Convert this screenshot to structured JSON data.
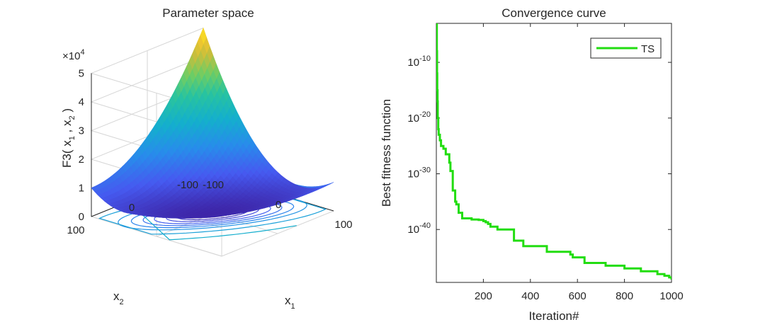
{
  "chart_data": [
    {
      "type": "surface",
      "title": "Parameter space",
      "xlabel": "x",
      "xlabel_sub": "1",
      "ylabel": "x",
      "ylabel_sub": "2",
      "zlabel_parts": [
        "F3( x",
        "1",
        " , x",
        "2",
        " )"
      ],
      "exponent_prefix": "×10",
      "exponent_power": "4",
      "xlim": [
        -100,
        100
      ],
      "ylim": [
        -100,
        100
      ],
      "zlim": [
        0,
        5
      ],
      "x_ticks": [
        "-100",
        "0",
        "100"
      ],
      "y_ticks": [
        "-100",
        "0",
        "100"
      ],
      "z_ticks": [
        "0",
        "1",
        "2",
        "3",
        "4",
        "5"
      ],
      "function": "(x1 + x2)^2 + x1^2",
      "colormap": "parula",
      "grid": true
    },
    {
      "type": "line",
      "title": "Convergence curve",
      "xlabel": "Iteration#",
      "ylabel": "Best fitness function",
      "y_scale": "log",
      "xlim": [
        0,
        1000
      ],
      "x_ticks": [
        "200",
        "400",
        "600",
        "800",
        "1000"
      ],
      "y_tick_base": "10",
      "y_tick_exponents": [
        "-10",
        "-20",
        "-30",
        "-40"
      ],
      "ylim_exponents": [
        -49.5,
        -3
      ],
      "legend_position": "top-right",
      "series": [
        {
          "name": "TS",
          "color": "#22dd11",
          "x": [
            1,
            2,
            3,
            4,
            5,
            6,
            8,
            10,
            15,
            20,
            30,
            40,
            55,
            60,
            70,
            80,
            85,
            95,
            110,
            150,
            170,
            180,
            200,
            210,
            220,
            230,
            260,
            320,
            330,
            360,
            370,
            440,
            470,
            480,
            520,
            570,
            580,
            620,
            630,
            680,
            720,
            790,
            800,
            820,
            870,
            880,
            940,
            950,
            970,
            990,
            1000
          ],
          "y_exponents": [
            -3,
            -8,
            -12,
            -15,
            -17,
            -20,
            -22,
            -23,
            -24,
            -25,
            -25.5,
            -26.5,
            -28,
            -29.5,
            -33,
            -35,
            -35.5,
            -37,
            -38,
            -38.2,
            -38.2,
            -38.3,
            -38.5,
            -38.7,
            -39,
            -39.5,
            -40,
            -40,
            -42,
            -42,
            -43,
            -43,
            -44,
            -44,
            -44,
            -44.5,
            -45,
            -45,
            -46,
            -46,
            -46.5,
            -46.5,
            -47,
            -47,
            -47.5,
            -47.5,
            -48,
            -48,
            -48.3,
            -48.6,
            -49
          ]
        }
      ]
    }
  ]
}
